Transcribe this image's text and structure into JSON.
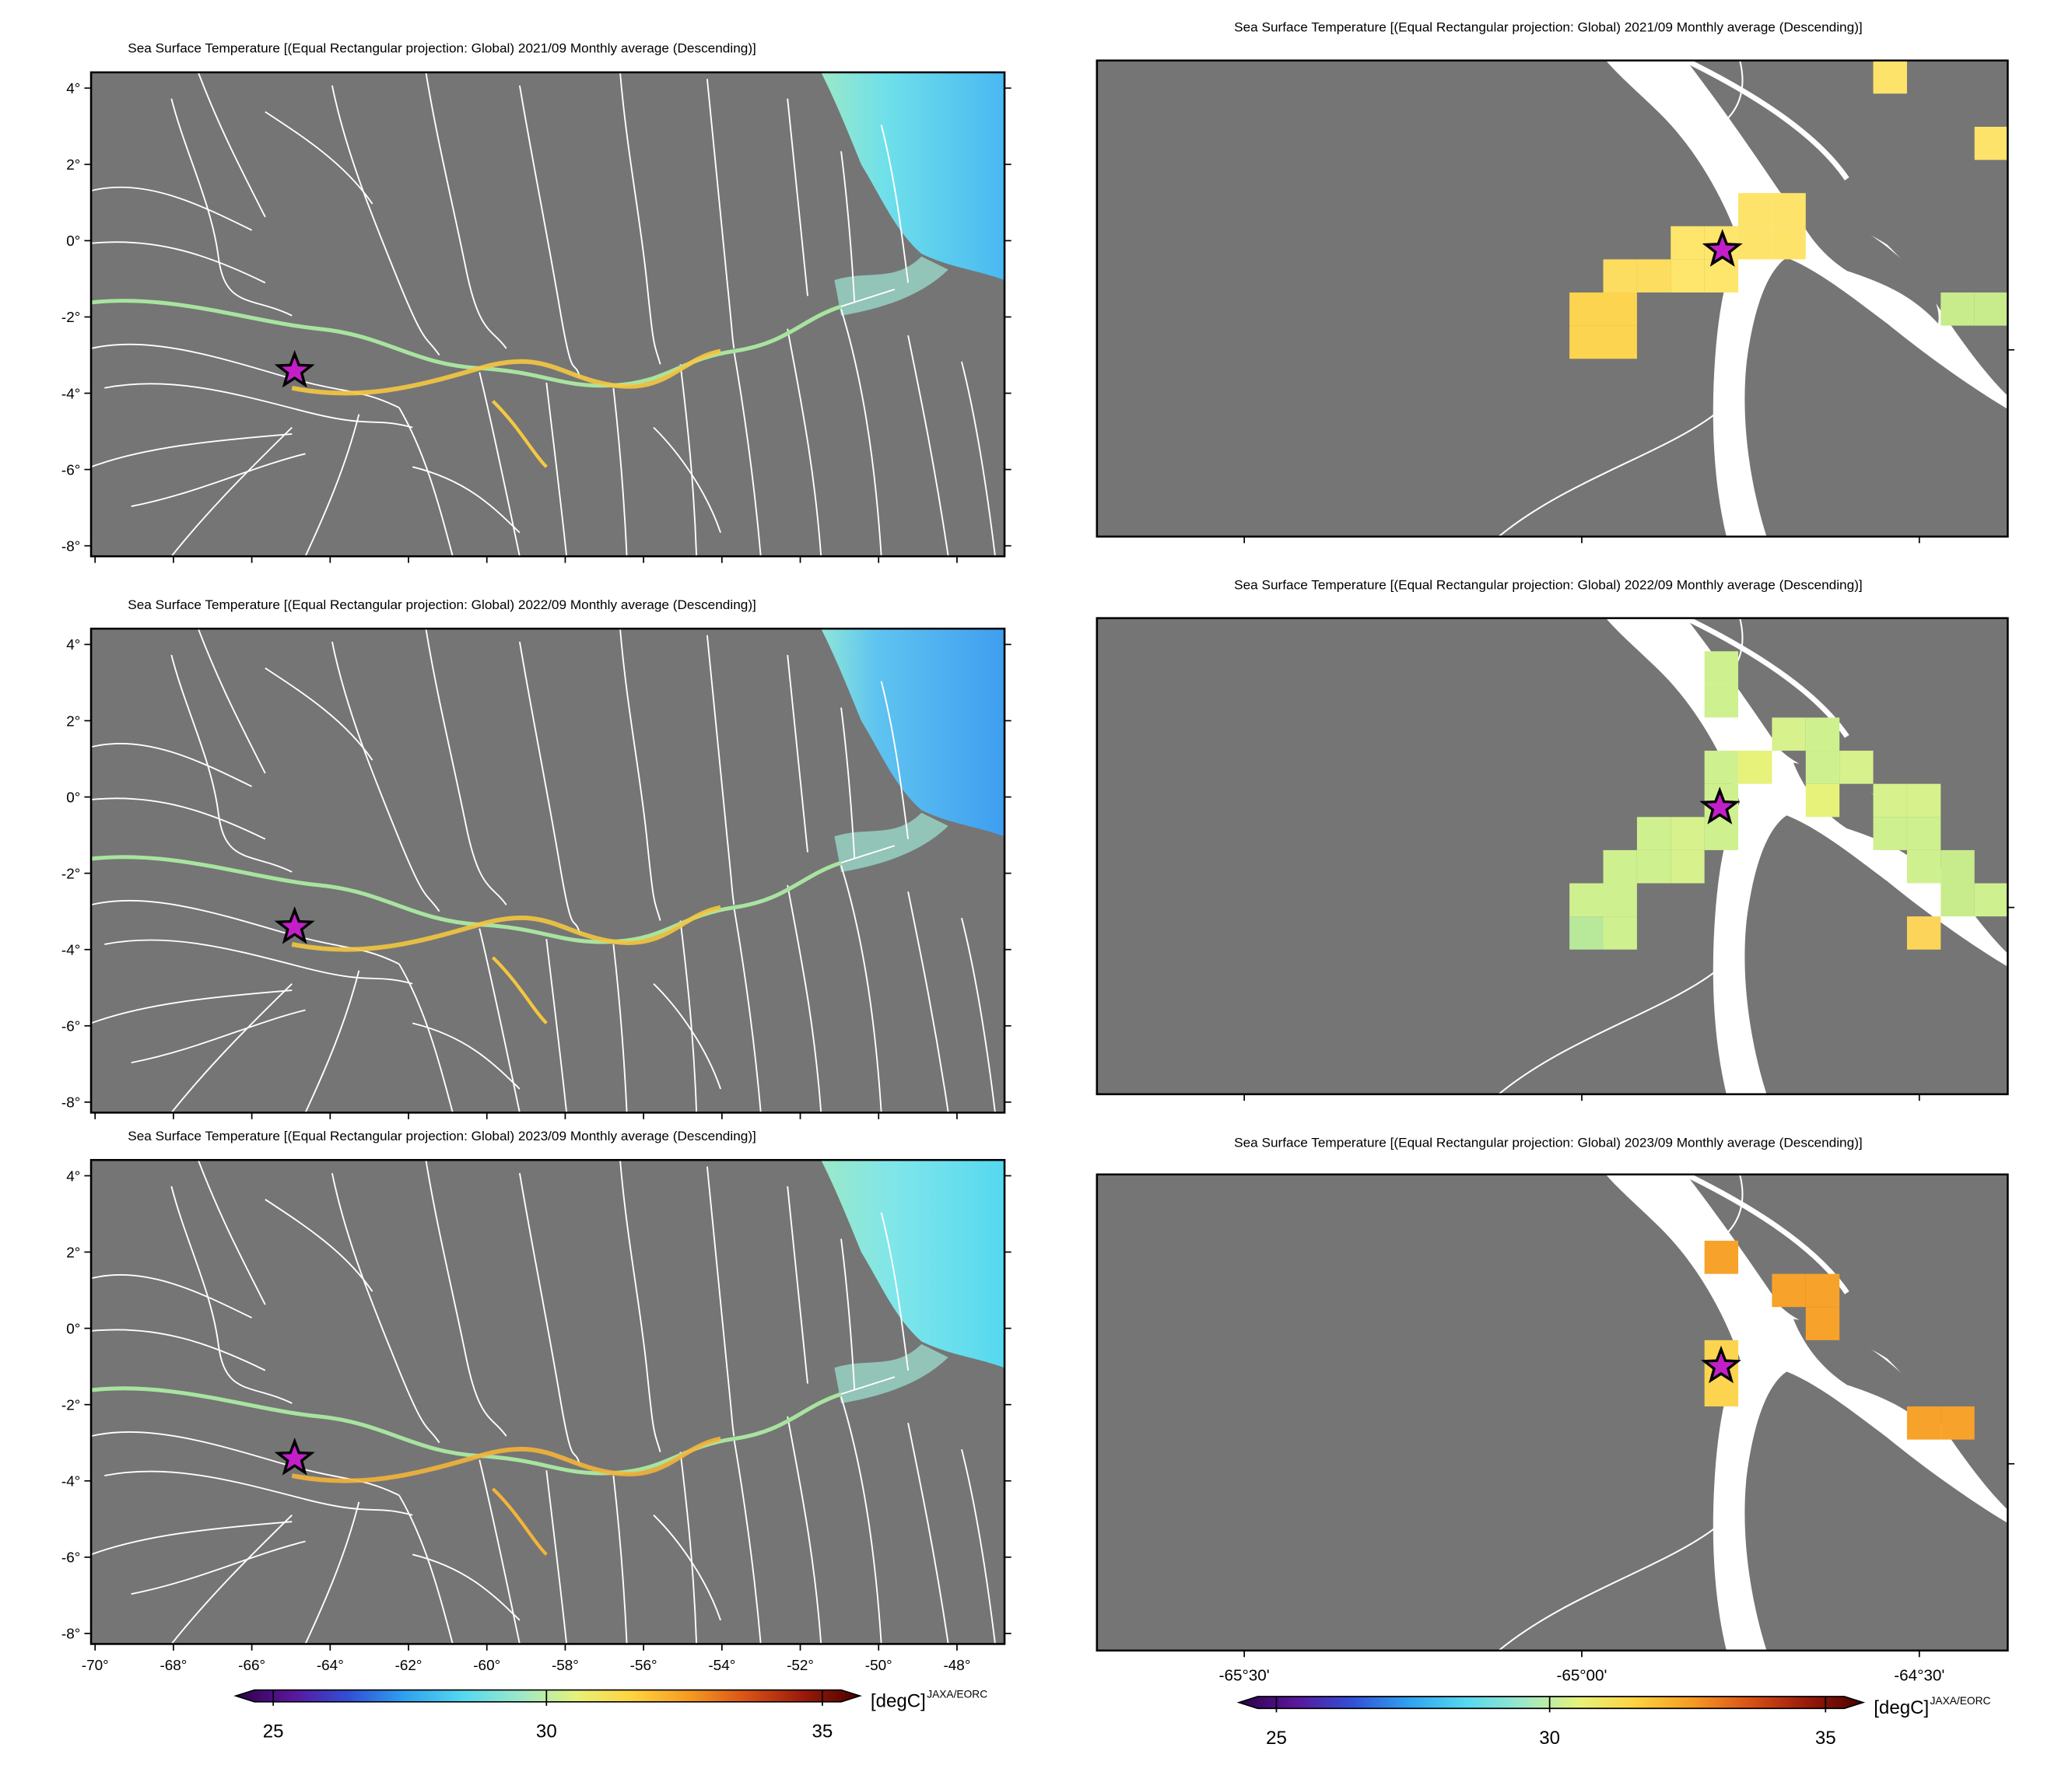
{
  "colors": {
    "land": "#757575",
    "river": "#ffffff",
    "frame": "#000000",
    "star_fill": "#c21fc9",
    "star_stroke": "#000000"
  },
  "colorbar": {
    "stops": [
      "#2b004a",
      "#5a169a",
      "#3150d8",
      "#2fa3ef",
      "#55d8f0",
      "#9be8c8",
      "#e6f27a",
      "#ffd23f",
      "#f59a22",
      "#d95216",
      "#9a1b0a",
      "#4a0000"
    ],
    "ticks": [
      "25",
      "30",
      "35"
    ],
    "unit": "[degC]",
    "credit": "JAXA/EORC"
  },
  "panels": [
    {
      "title": "Sea Surface Temperature [(Equal Rectangular projection: Global) 2021/09 Monthly average (Descending)]",
      "y_ticks": [
        "4°",
        "2°",
        "0°",
        "-2°",
        "-4°",
        "-6°",
        "-8°"
      ],
      "x_ticks": [],
      "year": "2021/09"
    },
    {
      "title": "Sea Surface Temperature [(Equal Rectangular projection: Global) 2021/09 Monthly average (Descending)]",
      "y_ticks": [],
      "x_ticks": [],
      "year": "2021/09"
    },
    {
      "title": "Sea Surface Temperature [(Equal Rectangular projection: Global) 2022/09 Monthly average (Descending)]",
      "y_ticks": [
        "4°",
        "2°",
        "0°",
        "-2°",
        "-4°",
        "-6°",
        "-8°"
      ],
      "x_ticks": [],
      "year": "2022/09"
    },
    {
      "title": "Sea Surface Temperature [(Equal Rectangular projection: Global) 2022/09 Monthly average (Descending)]",
      "y_ticks": [],
      "x_ticks": [],
      "year": "2022/09"
    },
    {
      "title": "Sea Surface Temperature [(Equal Rectangular projection: Global) 2023/09 Monthly average (Descending)]",
      "y_ticks": [
        "4°",
        "2°",
        "0°",
        "-2°",
        "-4°",
        "-6°",
        "-8°"
      ],
      "x_ticks": [
        "-70°",
        "-68°",
        "-66°",
        "-64°",
        "-62°",
        "-60°",
        "-58°",
        "-56°",
        "-54°",
        "-52°",
        "-50°",
        "-48°"
      ],
      "year": "2023/09"
    },
    {
      "title": "Sea Surface Temperature [(Equal Rectangular projection: Global) 2023/09 Monthly average (Descending)]",
      "y_ticks": [],
      "x_ticks": [
        "-65°30'",
        "-65°00'",
        "-64°30'"
      ],
      "year": "2023/09"
    }
  ],
  "zoom_pixels": [
    [
      {
        "c": 19,
        "r": 4,
        "col": "#fde36a"
      },
      {
        "c": 20,
        "r": 4,
        "col": "#fde36a"
      },
      {
        "c": 20,
        "r": 5,
        "col": "#fde36a"
      },
      {
        "c": 19,
        "r": 5,
        "col": "#fde36a"
      },
      {
        "c": 18,
        "r": 5,
        "col": "#fee56b"
      },
      {
        "c": 17,
        "r": 5,
        "col": "#fee56b"
      },
      {
        "c": 18,
        "r": 6,
        "col": "#fee56b"
      },
      {
        "c": 17,
        "r": 6,
        "col": "#fee56b"
      },
      {
        "c": 16,
        "r": 6,
        "col": "#fddd60"
      },
      {
        "c": 15,
        "r": 6,
        "col": "#fddd60"
      },
      {
        "c": 15,
        "r": 7,
        "col": "#fdd44f"
      },
      {
        "c": 14,
        "r": 7,
        "col": "#fdd44f"
      },
      {
        "c": 14,
        "r": 8,
        "col": "#fdd44f"
      },
      {
        "c": 15,
        "r": 8,
        "col": "#fdd44f"
      },
      {
        "c": 23,
        "r": 0,
        "col": "#fde36a"
      },
      {
        "c": 26,
        "r": 2,
        "col": "#fde36a"
      },
      {
        "c": 25,
        "r": 7,
        "col": "#c8ec8c"
      },
      {
        "c": 26,
        "r": 7,
        "col": "#c8ec8c"
      }
    ],
    [
      {
        "c": 18,
        "r": 1,
        "col": "#cff08f"
      },
      {
        "c": 18,
        "r": 2,
        "col": "#cff08f"
      },
      {
        "c": 20,
        "r": 3,
        "col": "#d7f18c"
      },
      {
        "c": 21,
        "r": 3,
        "col": "#cff08f"
      },
      {
        "c": 21,
        "r": 4,
        "col": "#cff08f"
      },
      {
        "c": 22,
        "r": 4,
        "col": "#d7f18c"
      },
      {
        "c": 18,
        "r": 4,
        "col": "#cff08f"
      },
      {
        "c": 19,
        "r": 4,
        "col": "#e6f27a"
      },
      {
        "c": 18,
        "r": 5,
        "col": "#cff08f"
      },
      {
        "c": 21,
        "r": 5,
        "col": "#e6f27a"
      },
      {
        "c": 23,
        "r": 5,
        "col": "#d7f18c"
      },
      {
        "c": 24,
        "r": 5,
        "col": "#d7f18c"
      },
      {
        "c": 16,
        "r": 6,
        "col": "#cff08f"
      },
      {
        "c": 17,
        "r": 6,
        "col": "#d7f18c"
      },
      {
        "c": 18,
        "r": 6,
        "col": "#cff08f"
      },
      {
        "c": 23,
        "r": 6,
        "col": "#cff08f"
      },
      {
        "c": 24,
        "r": 6,
        "col": "#cff08f"
      },
      {
        "c": 15,
        "r": 7,
        "col": "#cff08f"
      },
      {
        "c": 16,
        "r": 7,
        "col": "#cff08f"
      },
      {
        "c": 17,
        "r": 7,
        "col": "#d7f18c"
      },
      {
        "c": 24,
        "r": 7,
        "col": "#cff08f"
      },
      {
        "c": 25,
        "r": 7,
        "col": "#c8ec8c"
      },
      {
        "c": 14,
        "r": 8,
        "col": "#cff08f"
      },
      {
        "c": 15,
        "r": 8,
        "col": "#cff08f"
      },
      {
        "c": 25,
        "r": 8,
        "col": "#c8ec8c"
      },
      {
        "c": 26,
        "r": 8,
        "col": "#cff08f"
      },
      {
        "c": 14,
        "r": 9,
        "col": "#b8e89a"
      },
      {
        "c": 15,
        "r": 9,
        "col": "#cff08f"
      },
      {
        "c": 24,
        "r": 9,
        "col": "#fdd45a"
      }
    ],
    [
      {
        "c": 18,
        "r": 2,
        "col": "#f7a22a"
      },
      {
        "c": 20,
        "r": 3,
        "col": "#f7a22a"
      },
      {
        "c": 21,
        "r": 3,
        "col": "#f7a22a"
      },
      {
        "c": 21,
        "r": 4,
        "col": "#f7a22a"
      },
      {
        "c": 18,
        "r": 5,
        "col": "#fdd44f"
      },
      {
        "c": 18,
        "r": 6,
        "col": "#fdd44f"
      },
      {
        "c": 24,
        "r": 7,
        "col": "#f7a22a"
      },
      {
        "c": 25,
        "r": 7,
        "col": "#f7a22a"
      }
    ]
  ]
}
